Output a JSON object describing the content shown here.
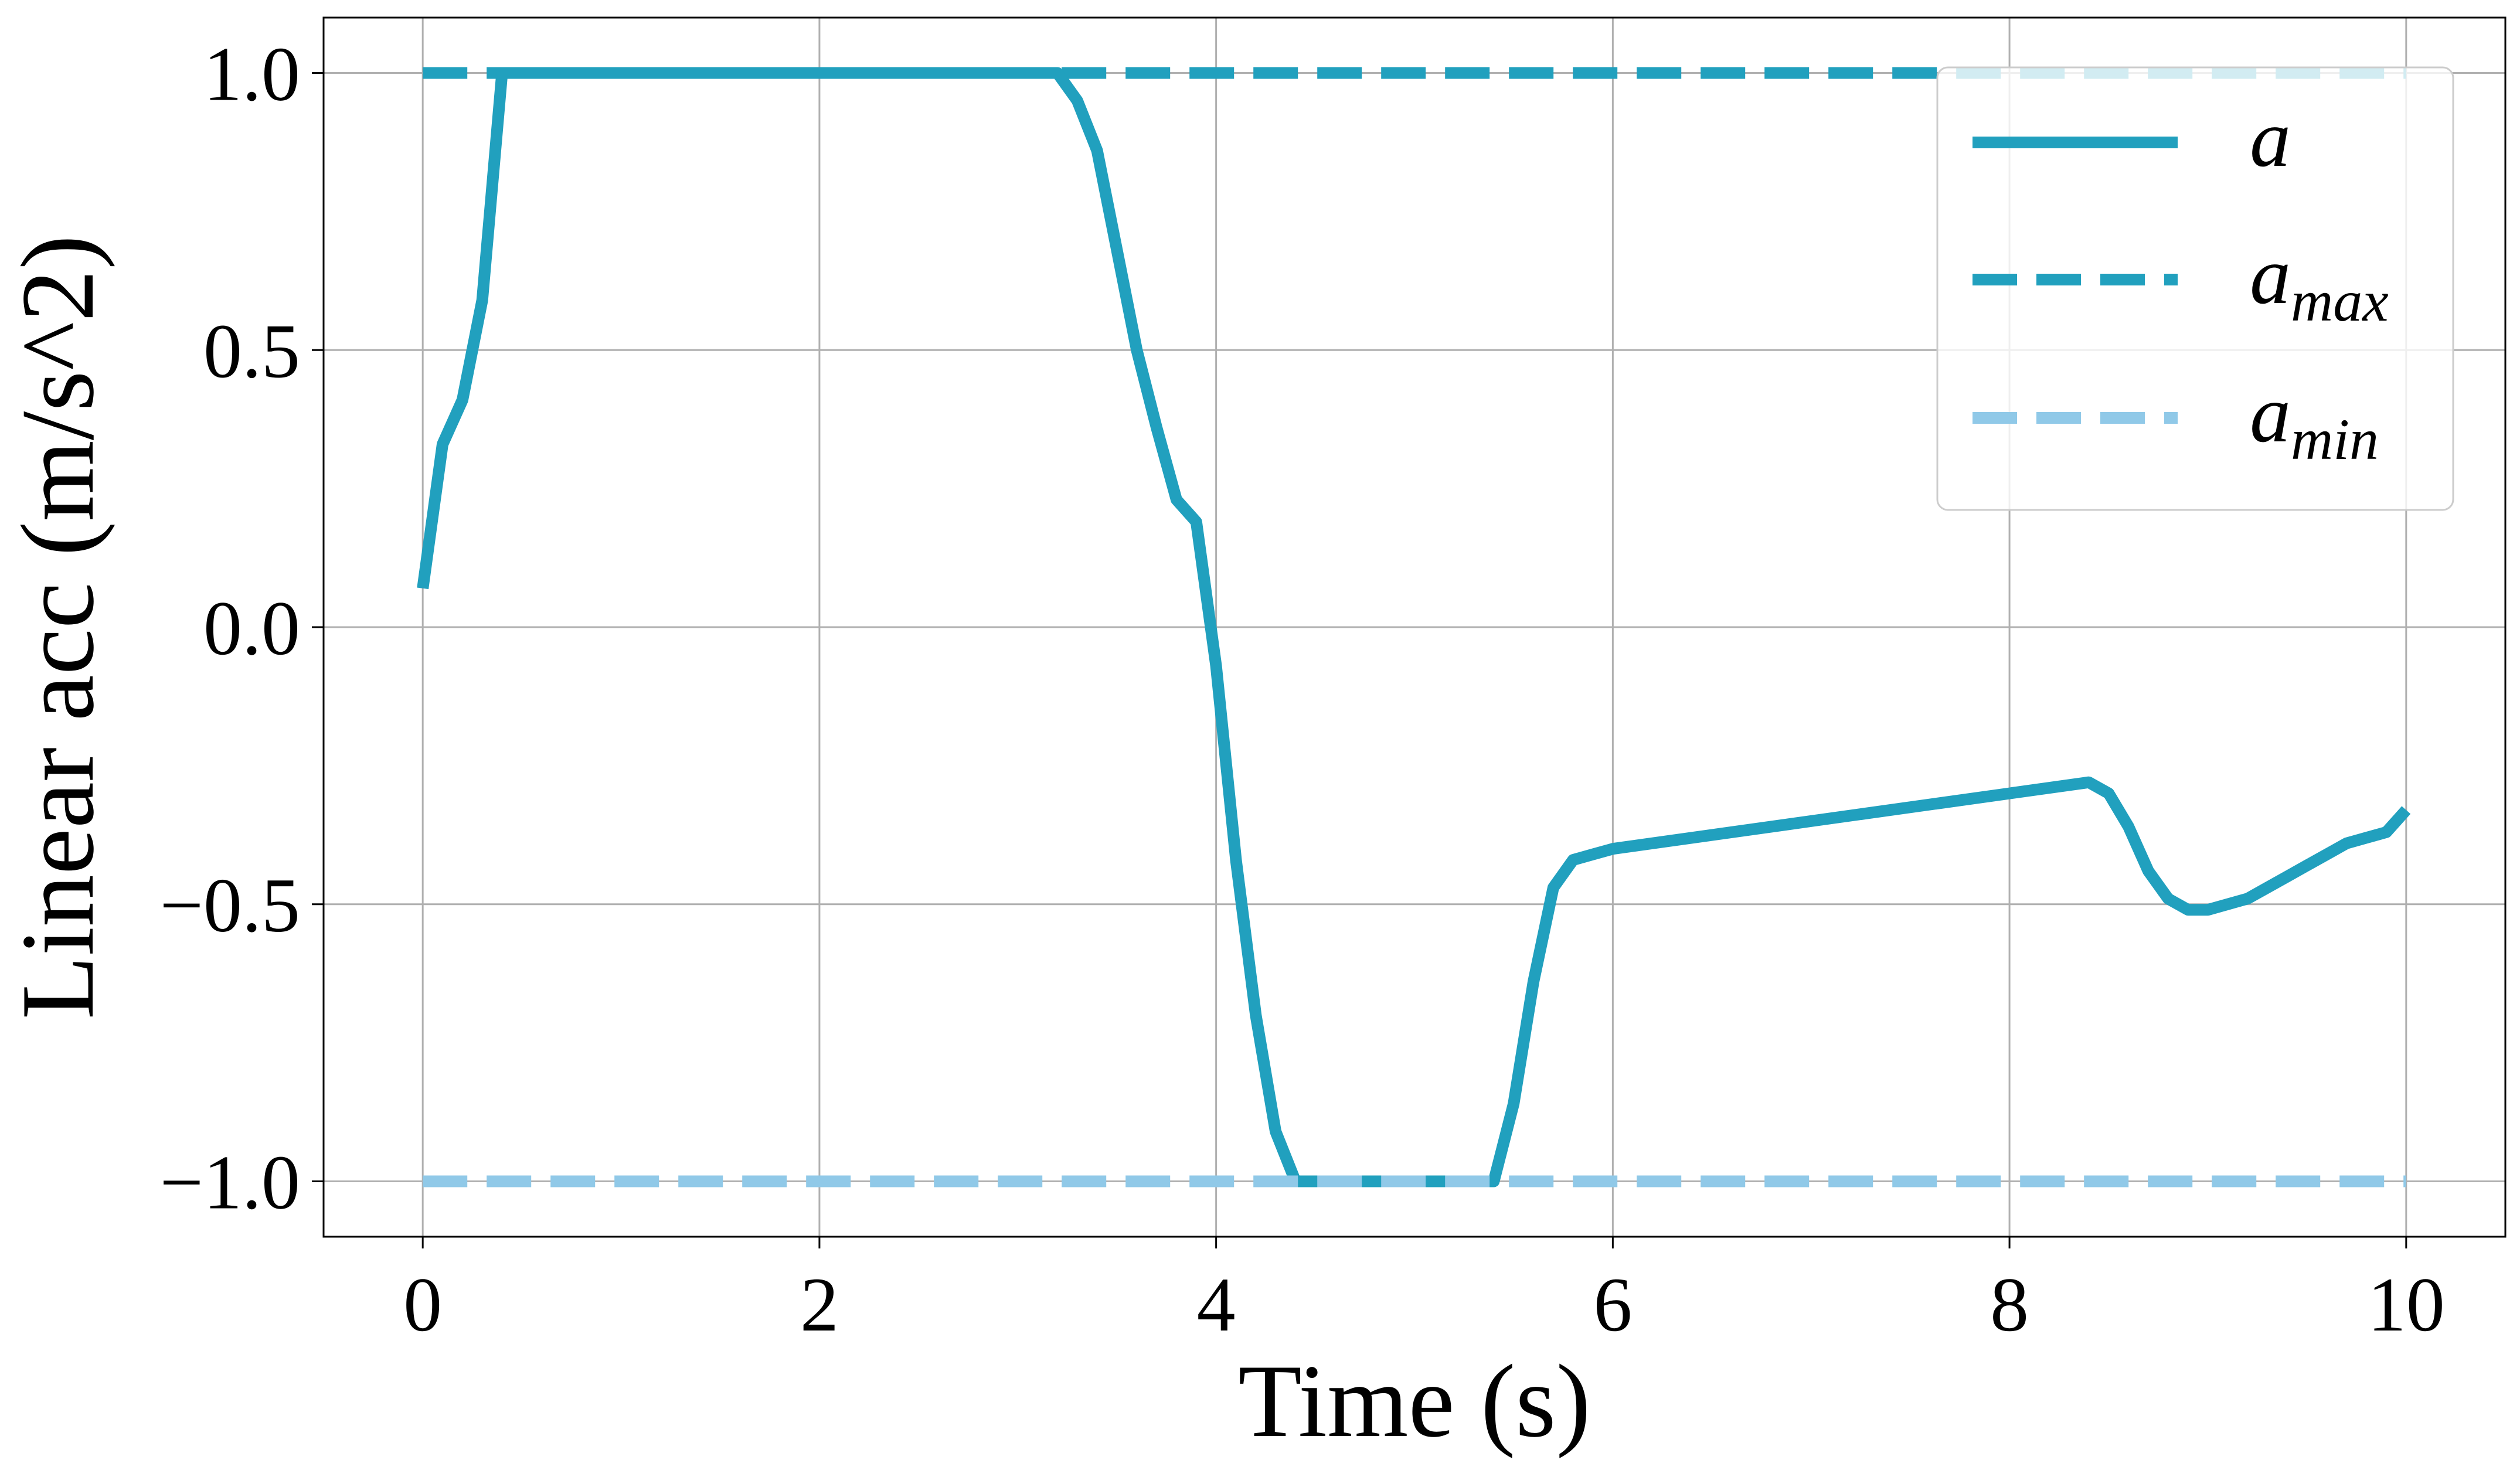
{
  "chart_data": {
    "type": "line",
    "xlabel": "Time (s)",
    "ylabel": "Linear acc (m/s^2)",
    "xlim": [
      -0.5,
      10.5
    ],
    "ylim": [
      -1.1,
      1.1
    ],
    "xticks": [
      0,
      2,
      4,
      6,
      8,
      10
    ],
    "xtick_labels": [
      "0",
      "2",
      "4",
      "6",
      "8",
      "10"
    ],
    "yticks": [
      -1.0,
      -0.5,
      0.0,
      0.5,
      1.0
    ],
    "ytick_labels": [
      "−1.0",
      "−0.5",
      "0.0",
      "0.5",
      "1.0"
    ],
    "grid": true,
    "legend_position": "top-right",
    "series": [
      {
        "name": "a",
        "style": "solid",
        "color": "#21a0be",
        "x": [
          0.0,
          0.1,
          0.2,
          0.3,
          0.4,
          0.5,
          1.0,
          2.0,
          3.0,
          3.2,
          3.3,
          3.4,
          3.5,
          3.6,
          3.7,
          3.8,
          3.9,
          4.0,
          4.1,
          4.2,
          4.3,
          4.4,
          4.5,
          5.0,
          5.4,
          5.5,
          5.6,
          5.7,
          5.8,
          5.9,
          6.0,
          7.0,
          8.0,
          8.4,
          8.5,
          8.6,
          8.7,
          8.8,
          8.9,
          9.0,
          9.1,
          9.2,
          9.3,
          9.4,
          9.5,
          9.6,
          9.7,
          9.8,
          9.9,
          10.0
        ],
        "y": [
          0.07,
          0.33,
          0.41,
          0.59,
          1.0,
          1.0,
          1.0,
          1.0,
          1.0,
          1.0,
          0.95,
          0.86,
          0.68,
          0.5,
          0.36,
          0.23,
          0.19,
          -0.07,
          -0.42,
          -0.7,
          -0.91,
          -1.0,
          -1.0,
          -1.0,
          -1.0,
          -0.86,
          -0.64,
          -0.47,
          -0.42,
          -0.41,
          -0.4,
          -0.35,
          -0.3,
          -0.28,
          -0.3,
          -0.36,
          -0.44,
          -0.49,
          -0.51,
          -0.51,
          -0.5,
          -0.49,
          -0.47,
          -0.45,
          -0.43,
          -0.41,
          -0.39,
          -0.38,
          -0.37,
          -0.33
        ]
      },
      {
        "name": "a_max",
        "style": "dashed",
        "color": "#21a0be",
        "x": [
          0,
          10
        ],
        "y": [
          1.0,
          1.0
        ]
      },
      {
        "name": "a_min",
        "style": "dashed",
        "color": "#90c9e8",
        "x": [
          0,
          10
        ],
        "y": [
          -1.0,
          -1.0
        ]
      }
    ],
    "legend": [
      {
        "label": "a",
        "sub": "",
        "style": "solid",
        "color": "#21a0be"
      },
      {
        "label": "a",
        "sub": "max",
        "style": "dashed",
        "color": "#21a0be"
      },
      {
        "label": "a",
        "sub": "min",
        "style": "dashed",
        "color": "#90c9e8"
      }
    ]
  }
}
